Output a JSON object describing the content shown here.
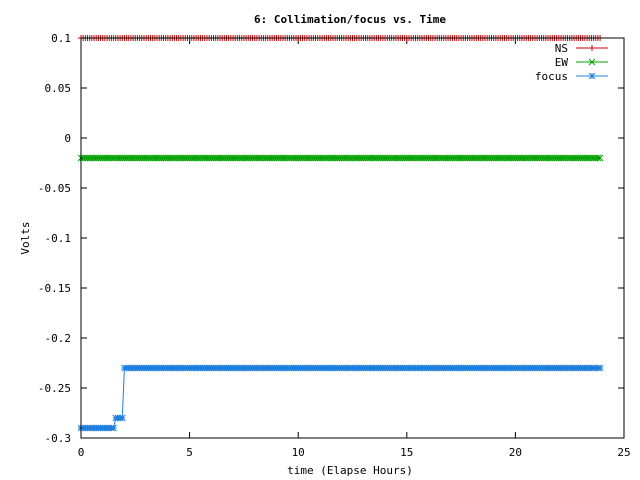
{
  "chart_data": {
    "type": "line",
    "title": "6: Collimation/focus vs. Time",
    "xlabel": "time (Elapse Hours)",
    "ylabel": "Volts",
    "xlim": [
      0,
      25
    ],
    "ylim": [
      -0.3,
      0.1
    ],
    "xticks": [
      0,
      5,
      10,
      15,
      20,
      25
    ],
    "xtick_labels": [
      "0",
      "5",
      "10",
      "15",
      "20",
      "25"
    ],
    "yticks": [
      0.1,
      0.05,
      0,
      -0.05,
      -0.1,
      -0.15,
      -0.2,
      -0.25,
      -0.3
    ],
    "ytick_labels": [
      "0.1",
      "0.05",
      "0",
      "-0.05",
      "-0.1",
      "-0.15",
      "-0.2",
      "-0.25",
      "-0.3"
    ],
    "grid": false,
    "legend_position": "top-right",
    "x_start": 0,
    "x_end": 23.9,
    "x_step": 0.1,
    "series": [
      {
        "name": "NS",
        "color": "#cc0000",
        "marker": "plus",
        "segments": [
          {
            "from": 0,
            "to": 23.9,
            "value": 0.1
          }
        ]
      },
      {
        "name": "EW",
        "color": "#00a000",
        "marker": "cross",
        "segments": [
          {
            "from": 0,
            "to": 23.9,
            "value": -0.02
          }
        ]
      },
      {
        "name": "focus",
        "color": "#1f7fdf",
        "marker": "star",
        "segments": [
          {
            "from": 0,
            "to": 1.5,
            "value": -0.29
          },
          {
            "from": 1.6,
            "to": 1.9,
            "value": -0.28
          },
          {
            "from": 2.0,
            "to": 23.9,
            "value": -0.23
          }
        ]
      }
    ]
  }
}
